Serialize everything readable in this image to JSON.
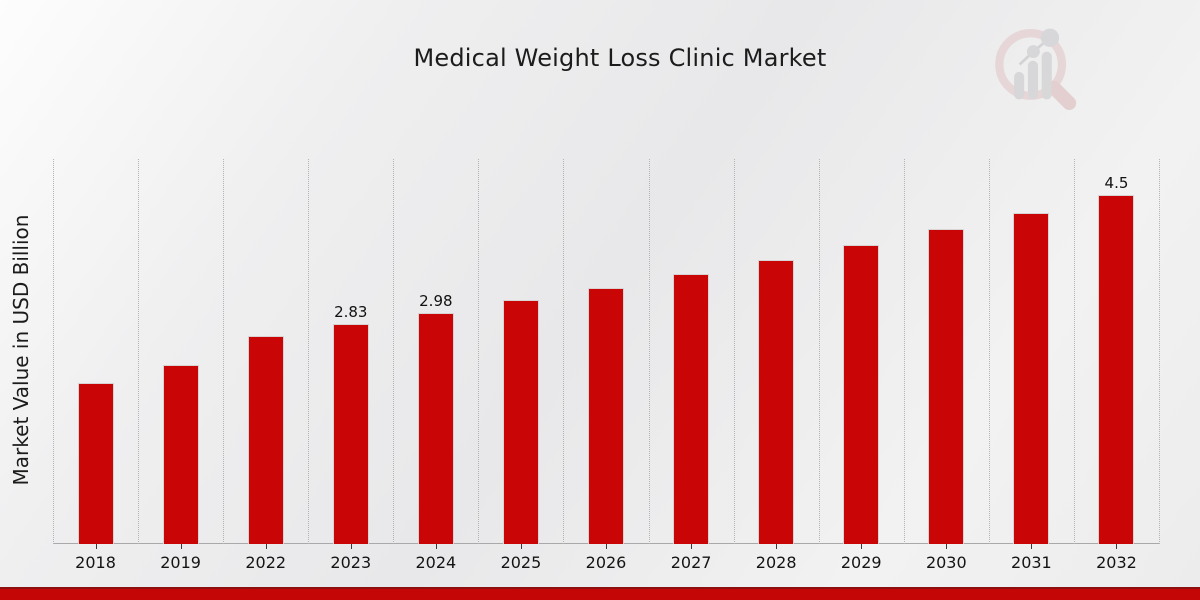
{
  "title": "Medical Weight Loss Clinic Market",
  "ylabel": "Market Value in USD Billion",
  "logo": {
    "icon": "magnifier-bar-chart-logo-icon"
  },
  "colors": {
    "bar": "#c90505",
    "banner": "#c50606",
    "banner_edge": "#8b1111",
    "text": "#1c1c1c",
    "gridline": "#b3b3b3"
  },
  "chart_data": {
    "type": "bar",
    "title": "Medical Weight Loss Clinic Market",
    "xlabel": "",
    "ylabel": "Market Value in USD Billion",
    "categories": [
      "2018",
      "2019",
      "2022",
      "2023",
      "2024",
      "2025",
      "2026",
      "2027",
      "2028",
      "2029",
      "2030",
      "2031",
      "2032"
    ],
    "values": [
      2.08,
      2.31,
      2.68,
      2.83,
      2.98,
      3.14,
      3.3,
      3.48,
      3.66,
      3.85,
      4.06,
      4.27,
      4.5
    ],
    "data_labels": [
      "",
      "",
      "",
      "2.83",
      "2.98",
      "",
      "",
      "",
      "",
      "",
      "",
      "",
      "4.5"
    ],
    "bar_color": "#c90505",
    "ylim": [
      0,
      4.96
    ],
    "grid": "vertical-dotted",
    "legend": false
  }
}
